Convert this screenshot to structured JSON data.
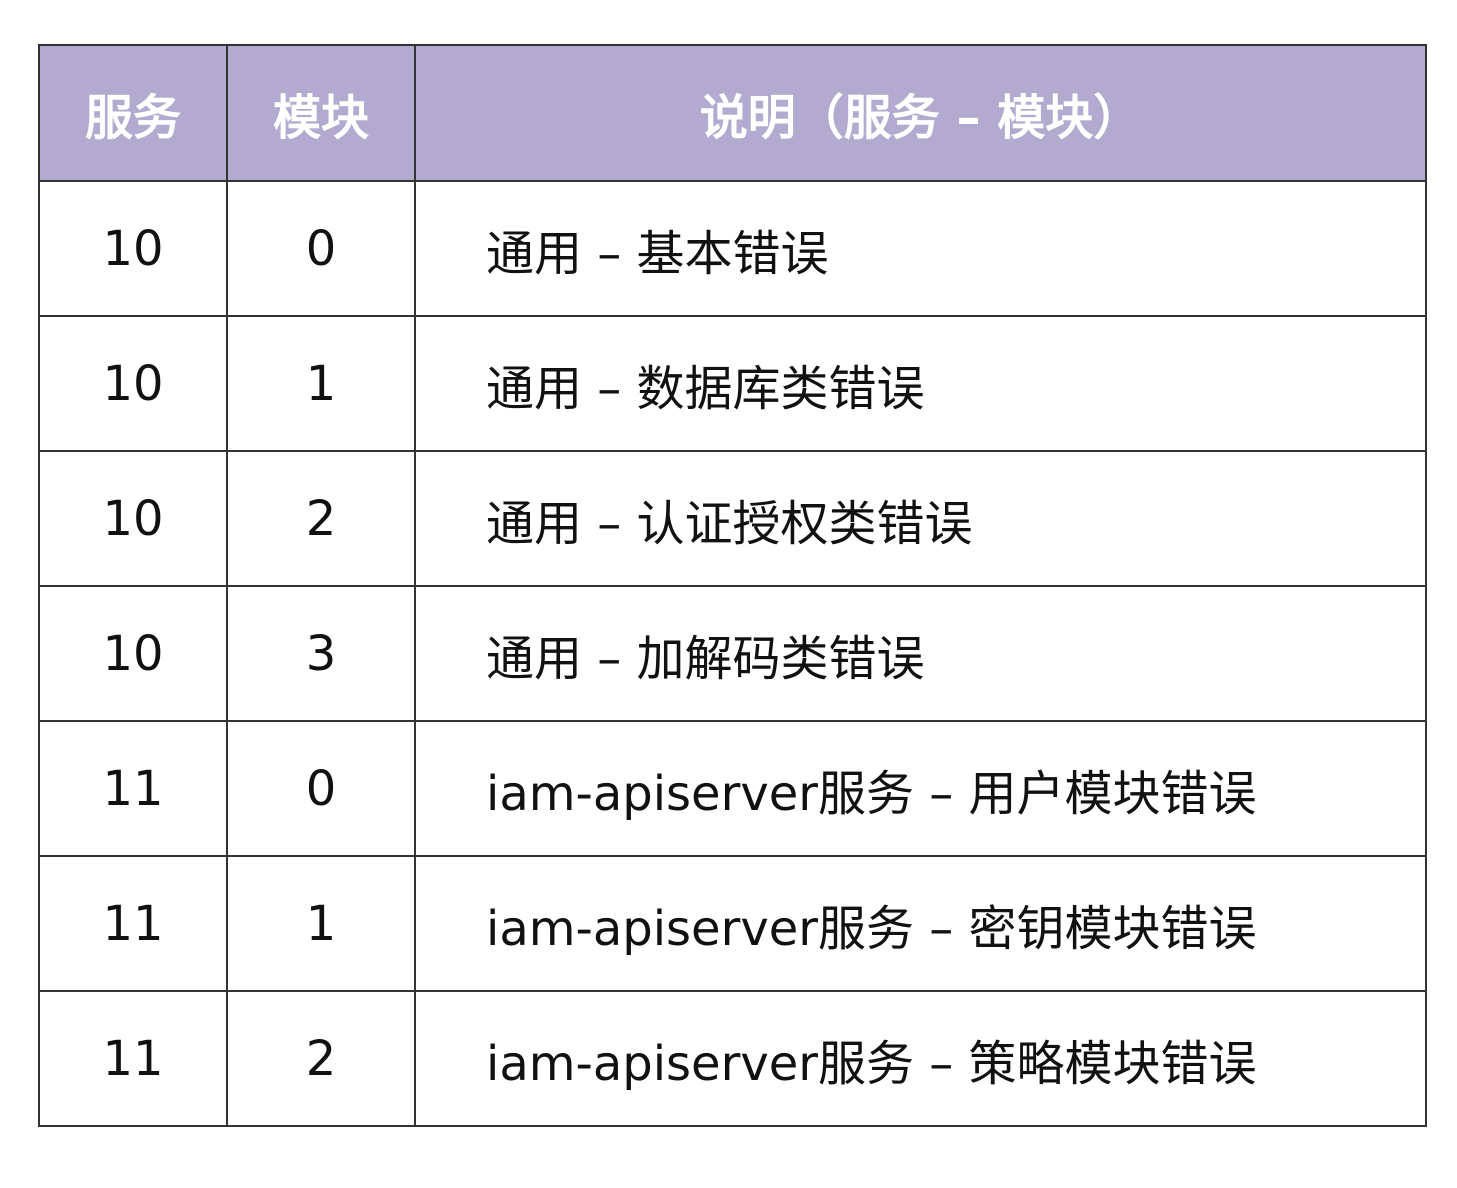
{
  "header_color": "#b3abcf",
  "headers": [
    "服务",
    "模块",
    "说明（服务 – 模块）"
  ],
  "rows": [
    {
      "service": "10",
      "module": "0",
      "desc": "通用 – 基本错误"
    },
    {
      "service": "10",
      "module": "1",
      "desc": "通用 – 数据库类错误"
    },
    {
      "service": "10",
      "module": "2",
      "desc": "通用 – 认证授权类错误"
    },
    {
      "service": "10",
      "module": "3",
      "desc": "通用 – 加解码类错误"
    },
    {
      "service": "11",
      "module": "0",
      "desc": "iam-apiserver服务 – 用户模块错误"
    },
    {
      "service": "11",
      "module": "1",
      "desc": "iam-apiserver服务 – 密钥模块错误"
    },
    {
      "service": "11",
      "module": "2",
      "desc": "iam-apiserver服务 – 策略模块错误"
    }
  ]
}
